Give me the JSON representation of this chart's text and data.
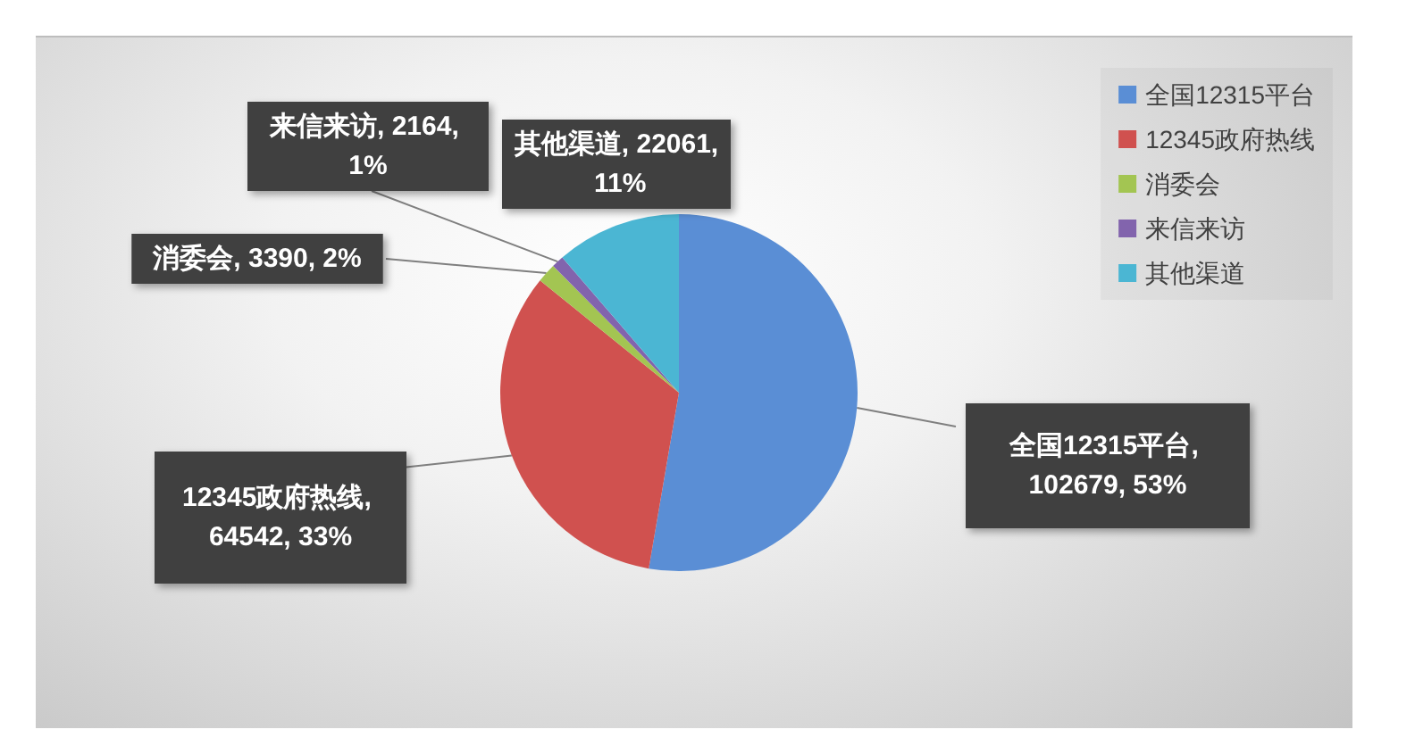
{
  "chart_data": {
    "type": "pie",
    "categories": [
      "全国12315平台",
      "12345政府热线",
      "消委会",
      "来信来访",
      "其他渠道"
    ],
    "values": [
      102679,
      64542,
      3390,
      2164,
      22061
    ],
    "colors": [
      "#5a8ed5",
      "#d0514f",
      "#a3c552",
      "#8264ad",
      "#4bb6d3"
    ],
    "value_labels": [
      "全国12315平台, 102679, 53%",
      "12345政府热线, 64542, 33%",
      "消委会, 3390, 2%",
      "来信来访, 2164, 1%",
      "其他渠道, 22061, 11%"
    ],
    "legend": "top right"
  }
}
